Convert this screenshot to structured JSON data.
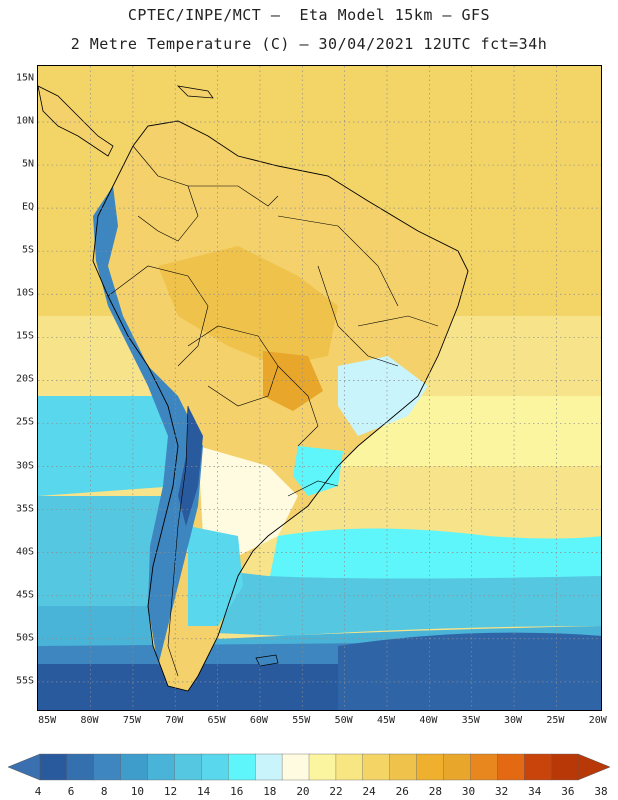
{
  "header": {
    "line1": "CPTEC/INPE/MCT –  Eta Model 15km – GFS",
    "line2": "2 Metre Temperature (C) – 30/04/2021 12UTC fct=34h"
  },
  "map": {
    "lat_labels": [
      "15N",
      "10N",
      "5N",
      "EQ",
      "5S",
      "10S",
      "15S",
      "20S",
      "25S",
      "30S",
      "35S",
      "40S",
      "45S",
      "50S",
      "55S"
    ],
    "lon_labels": [
      "85W",
      "80W",
      "75W",
      "70W",
      "65W",
      "60W",
      "55W",
      "50W",
      "45W",
      "40W",
      "35W",
      "30W",
      "25W",
      "20W"
    ],
    "colors": {
      "deep_blue": "#2a5a9e",
      "mid_blue": "#3d86c0",
      "light_blue": "#4ab4d8",
      "cyan": "#59d7ec",
      "bright_cyan": "#5ff6fb",
      "pale_cyan": "#c9f4fb",
      "cream": "#fffbe0",
      "pale_yellow": "#fbf5a0",
      "yellow": "#f7e681",
      "light_orange": "#f5d466",
      "orange": "#efc24b",
      "dark_orange": "#e8a62b",
      "border_line": "#000000",
      "grid_line": "#8c8c8c"
    }
  },
  "colorbar": {
    "labels": [
      "4",
      "6",
      "8",
      "10",
      "12",
      "14",
      "16",
      "18",
      "20",
      "22",
      "24",
      "26",
      "28",
      "30",
      "32",
      "34",
      "36",
      "38"
    ],
    "colors": [
      "#2a5a9e",
      "#3470ad",
      "#3d86c0",
      "#3f9dcc",
      "#4ab4d8",
      "#55c7e1",
      "#59d7ec",
      "#5ff6fb",
      "#c9f4fb",
      "#fffbe0",
      "#fbf5a0",
      "#f7e681",
      "#f5d466",
      "#efc24b",
      "#eeb02d",
      "#e8a62b",
      "#e9871f",
      "#e36a12",
      "#c8440a",
      "#b83808"
    ],
    "left_arrow_color": "#3a6fb0",
    "right_arrow_color": "#b83808"
  }
}
